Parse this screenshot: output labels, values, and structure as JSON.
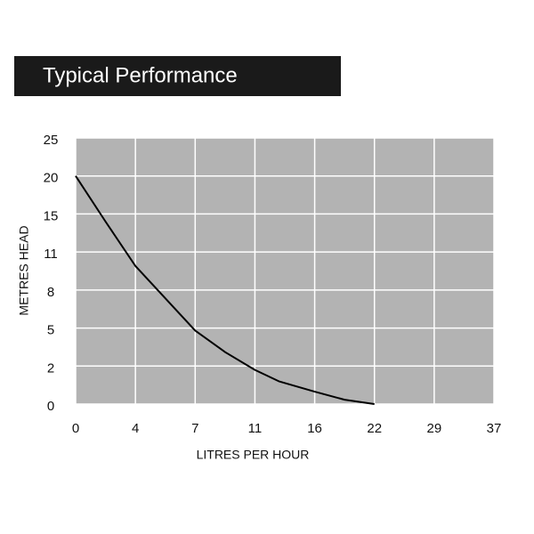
{
  "chart_data": {
    "type": "line",
    "title": "Typical Performance",
    "x_label": "LITRES PER HOUR",
    "y_label": "METRES HEAD",
    "x": [
      0,
      2,
      4,
      7,
      9,
      11,
      13,
      16,
      19,
      22
    ],
    "series": [
      {
        "color": "#000000",
        "values": [
          20,
          14.2,
          9.9,
          4.8,
          3.1,
          1.8,
          1.2,
          0.65,
          0.23,
          0
        ]
      }
    ],
    "xlim": [
      0,
      37
    ],
    "ylim": [
      0,
      25
    ],
    "xticks": [
      0,
      4,
      7,
      11,
      16,
      22,
      29,
      37
    ],
    "yticks": [
      0,
      2,
      5,
      8,
      11,
      15,
      20,
      25
    ],
    "grid": true,
    "plot_background": "#b3b3b3"
  }
}
